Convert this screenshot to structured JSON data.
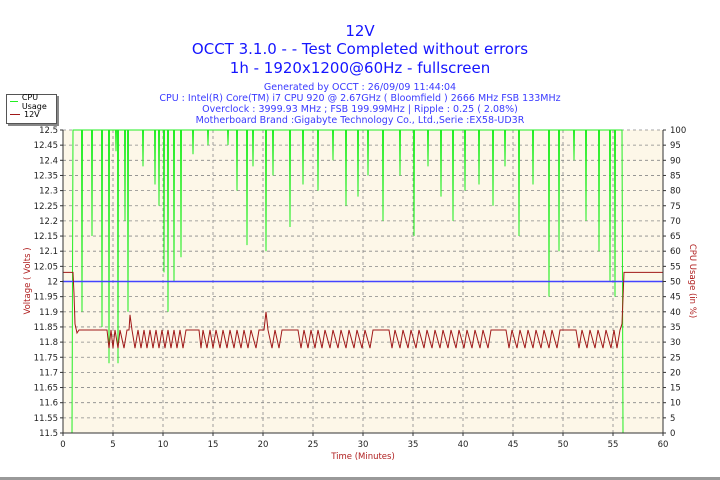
{
  "header": {
    "title": "12V",
    "subtitle": "OCCT 3.1.0 -  - Test Completed without errors",
    "test_info": "1h - 1920x1200@60Hz - fullscreen",
    "generated": "Generated by OCCT : 26/09/09 11:44:04",
    "cpu": "CPU : Intel(R) Core(TM) i7 CPU 920 @ 2.67GHz ( Bloomfield ) 2666 MHz FSB 133MHz",
    "overclock": "Overclock : 3999.93 MHz ; FSB 199.99MHz | Ripple : 0.25 ( 2.08%)",
    "motherboard": "Motherboard Brand :Gigabyte Technology Co., Ltd.,Serie :EX58-UD3R"
  },
  "colors": {
    "cpu": "#22ee22",
    "voltage": "#a01818",
    "reference": "#4444ff",
    "plot_bg": "#fdf7e8",
    "title": "#1515ff"
  },
  "chart_data": {
    "type": "line",
    "xlabel": "Time (Minutes)",
    "ylabel": "Voltage ( Volts )",
    "y2label": "CPU Usage (in %)",
    "xlim": [
      0,
      60
    ],
    "ylim": [
      11.5,
      12.5
    ],
    "y2lim": [
      0,
      100
    ],
    "xticks": [
      0,
      5,
      10,
      15,
      20,
      25,
      30,
      35,
      40,
      45,
      50,
      55,
      60
    ],
    "yticks": [
      11.5,
      11.55,
      11.6,
      11.65,
      11.7,
      11.75,
      11.8,
      11.85,
      11.9,
      11.95,
      12,
      12.05,
      12.1,
      12.15,
      12.2,
      12.25,
      12.3,
      12.35,
      12.4,
      12.45,
      12.5
    ],
    "y2ticks": [
      0,
      5,
      10,
      15,
      20,
      25,
      30,
      35,
      40,
      45,
      50,
      55,
      60,
      65,
      70,
      75,
      80,
      85,
      90,
      95,
      100
    ],
    "grid": true,
    "legend": "top-left",
    "reference_line": 12,
    "series": [
      {
        "name": "CPU Usage",
        "axis": "right",
        "start": [
          [
            0,
            0
          ],
          [
            0.9,
            0
          ],
          [
            1.0,
            100
          ]
        ],
        "dips": [
          [
            1.9,
            40
          ],
          [
            2.9,
            65
          ],
          [
            3.9,
            35
          ],
          [
            4.6,
            23
          ],
          [
            5.3,
            93
          ],
          [
            5.5,
            23
          ],
          [
            6.2,
            70
          ],
          [
            6.5,
            40
          ],
          [
            8.0,
            88
          ],
          [
            9.2,
            82
          ],
          [
            9.6,
            75
          ],
          [
            10.1,
            53
          ],
          [
            10.5,
            40
          ],
          [
            11.1,
            50
          ],
          [
            11.8,
            58
          ],
          [
            13,
            92
          ],
          [
            14.5,
            95
          ],
          [
            16.5,
            95
          ],
          [
            17.4,
            80
          ],
          [
            18.4,
            62
          ],
          [
            19,
            88
          ],
          [
            20.3,
            60
          ],
          [
            21,
            85
          ],
          [
            22.7,
            68
          ],
          [
            24,
            82
          ],
          [
            25.5,
            80
          ],
          [
            27,
            90
          ],
          [
            28.3,
            75
          ],
          [
            29.5,
            78
          ],
          [
            30.5,
            85
          ],
          [
            32,
            70
          ],
          [
            33.7,
            85
          ],
          [
            35.1,
            65
          ],
          [
            36.5,
            88
          ],
          [
            37.8,
            78
          ],
          [
            39,
            70
          ],
          [
            40.2,
            80
          ],
          [
            41.6,
            82
          ],
          [
            43,
            75
          ],
          [
            44.2,
            88
          ],
          [
            45.6,
            65
          ],
          [
            47,
            82
          ],
          [
            48.6,
            45
          ],
          [
            49.6,
            60
          ],
          [
            51.1,
            90
          ],
          [
            52.3,
            70
          ],
          [
            53.6,
            60
          ],
          [
            54.7,
            50
          ],
          [
            55.2,
            45
          ]
        ],
        "end": [
          [
            55.9,
            100
          ],
          [
            56,
            0
          ],
          [
            60,
            0
          ]
        ]
      },
      {
        "name": "12V",
        "axis": "left",
        "points": [
          [
            0,
            12.03
          ],
          [
            1.0,
            12.03
          ],
          [
            1.1,
            11.96
          ],
          [
            1.2,
            11.86
          ],
          [
            1.4,
            11.83
          ],
          [
            1.6,
            11.84
          ],
          [
            4.4,
            11.84
          ],
          [
            4.6,
            11.78
          ],
          [
            4.8,
            11.84
          ],
          [
            5.0,
            11.78
          ],
          [
            5.2,
            11.84
          ],
          [
            5.5,
            11.78
          ],
          [
            5.7,
            11.84
          ],
          [
            6.1,
            11.78
          ],
          [
            6.4,
            11.84
          ],
          [
            6.6,
            11.84
          ],
          [
            6.7,
            11.89
          ],
          [
            6.9,
            11.84
          ],
          [
            7.2,
            11.78
          ],
          [
            7.5,
            11.84
          ],
          [
            7.8,
            11.78
          ],
          [
            8.1,
            11.84
          ],
          [
            8.4,
            11.78
          ],
          [
            8.7,
            11.84
          ],
          [
            9.0,
            11.78
          ],
          [
            9.3,
            11.84
          ],
          [
            9.6,
            11.78
          ],
          [
            9.9,
            11.84
          ],
          [
            10.2,
            11.78
          ],
          [
            10.5,
            11.84
          ],
          [
            10.8,
            11.78
          ],
          [
            11.1,
            11.84
          ],
          [
            11.4,
            11.78
          ],
          [
            11.7,
            11.84
          ],
          [
            12.0,
            11.78
          ],
          [
            12.3,
            11.84
          ],
          [
            13.6,
            11.84
          ],
          [
            13.8,
            11.78
          ],
          [
            14.0,
            11.84
          ],
          [
            14.4,
            11.78
          ],
          [
            14.7,
            11.84
          ],
          [
            15.0,
            11.78
          ],
          [
            15.3,
            11.84
          ],
          [
            15.7,
            11.78
          ],
          [
            16.0,
            11.84
          ],
          [
            16.4,
            11.78
          ],
          [
            16.7,
            11.84
          ],
          [
            17.1,
            11.78
          ],
          [
            17.4,
            11.84
          ],
          [
            17.8,
            11.78
          ],
          [
            18.1,
            11.84
          ],
          [
            18.5,
            11.78
          ],
          [
            18.8,
            11.84
          ],
          [
            19.3,
            11.78
          ],
          [
            19.6,
            11.84
          ],
          [
            20.1,
            11.84
          ],
          [
            20.3,
            11.9
          ],
          [
            20.5,
            11.84
          ],
          [
            20.9,
            11.78
          ],
          [
            21.2,
            11.84
          ],
          [
            21.6,
            11.78
          ],
          [
            21.9,
            11.84
          ],
          [
            23.5,
            11.84
          ],
          [
            23.8,
            11.78
          ],
          [
            24.1,
            11.84
          ],
          [
            24.5,
            11.78
          ],
          [
            24.8,
            11.84
          ],
          [
            25.2,
            11.78
          ],
          [
            25.5,
            11.84
          ],
          [
            25.9,
            11.78
          ],
          [
            26.2,
            11.84
          ],
          [
            26.7,
            11.78
          ],
          [
            27.0,
            11.84
          ],
          [
            27.5,
            11.78
          ],
          [
            27.8,
            11.84
          ],
          [
            28.3,
            11.78
          ],
          [
            28.6,
            11.84
          ],
          [
            29.1,
            11.78
          ],
          [
            29.4,
            11.84
          ],
          [
            29.9,
            11.78
          ],
          [
            30.2,
            11.84
          ],
          [
            30.7,
            11.78
          ],
          [
            31.0,
            11.84
          ],
          [
            32.6,
            11.84
          ],
          [
            32.9,
            11.78
          ],
          [
            33.2,
            11.84
          ],
          [
            33.7,
            11.78
          ],
          [
            34.0,
            11.84
          ],
          [
            34.5,
            11.78
          ],
          [
            34.8,
            11.84
          ],
          [
            35.3,
            11.78
          ],
          [
            35.6,
            11.84
          ],
          [
            36.1,
            11.78
          ],
          [
            36.4,
            11.84
          ],
          [
            36.9,
            11.78
          ],
          [
            37.2,
            11.84
          ],
          [
            37.7,
            11.78
          ],
          [
            38.0,
            11.84
          ],
          [
            38.5,
            11.78
          ],
          [
            38.8,
            11.84
          ],
          [
            39.3,
            11.78
          ],
          [
            39.6,
            11.84
          ],
          [
            40.1,
            11.78
          ],
          [
            40.4,
            11.84
          ],
          [
            40.9,
            11.78
          ],
          [
            41.2,
            11.84
          ],
          [
            41.7,
            11.78
          ],
          [
            42.0,
            11.84
          ],
          [
            42.5,
            11.78
          ],
          [
            42.8,
            11.84
          ],
          [
            44.3,
            11.84
          ],
          [
            44.6,
            11.78
          ],
          [
            44.9,
            11.84
          ],
          [
            45.4,
            11.78
          ],
          [
            45.7,
            11.84
          ],
          [
            46.2,
            11.78
          ],
          [
            46.5,
            11.84
          ],
          [
            47.0,
            11.78
          ],
          [
            47.3,
            11.84
          ],
          [
            47.8,
            11.78
          ],
          [
            48.1,
            11.84
          ],
          [
            48.6,
            11.78
          ],
          [
            48.9,
            11.84
          ],
          [
            49.4,
            11.78
          ],
          [
            49.7,
            11.84
          ],
          [
            51.3,
            11.84
          ],
          [
            51.6,
            11.78
          ],
          [
            51.9,
            11.84
          ],
          [
            52.4,
            11.78
          ],
          [
            52.7,
            11.84
          ],
          [
            53.2,
            11.78
          ],
          [
            53.5,
            11.84
          ],
          [
            54.0,
            11.78
          ],
          [
            54.3,
            11.84
          ],
          [
            54.8,
            11.78
          ],
          [
            55.1,
            11.84
          ],
          [
            55.4,
            11.78
          ],
          [
            55.7,
            11.84
          ],
          [
            55.9,
            11.86
          ],
          [
            56.1,
            12.03
          ],
          [
            60,
            12.03
          ]
        ]
      }
    ]
  }
}
